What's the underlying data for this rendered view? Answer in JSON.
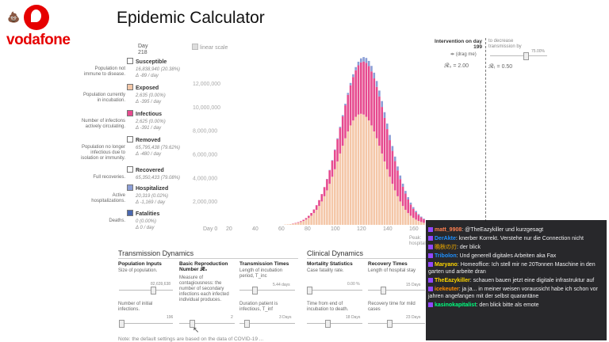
{
  "brand": {
    "name": "vodafone",
    "emoji": "💩"
  },
  "title": "Epidemic Calculator",
  "day": {
    "label": "Day",
    "value": "218"
  },
  "linear_scale": "linear scale",
  "intervention": {
    "label": "Intervention on day 199",
    "drag": "(drag me)",
    "r0": "𝓡₀ = 2.00",
    "rt_label": "to decrease transmission by",
    "rt_pct": "75.00%",
    "rt": "𝓡ₜ = 0.50"
  },
  "categories": [
    {
      "title": "Susceptible",
      "desc": "Population not immune to disease.",
      "v1": "16,838,940 (20.38%)",
      "v2": "Δ -89 / day",
      "color": "#ffffff"
    },
    {
      "title": "Exposed",
      "desc": "Population currently in incubation.",
      "v1": "2,635 (0.00%)",
      "v2": "Δ -395 / day",
      "color": "#f4c7a8"
    },
    {
      "title": "Infectious",
      "desc": "Number of infections actively circulating.",
      "v1": "2,625 (0.00%)",
      "v2": "Δ -391 / day",
      "color": "#e64b8f"
    },
    {
      "title": "Removed",
      "desc": "Population no longer infectious due to isolation or immunity.",
      "v1": "65,795,438 (79.62%)",
      "v2": "Δ -480 / day",
      "color": "#ffffff"
    },
    {
      "title": "Recovered",
      "desc": "Full recoveries.",
      "v1": "65,350,433 (79.08%)",
      "v2": "",
      "color": "#ffffff"
    },
    {
      "title": "Hospitalized",
      "desc": "Active hospitalizations.",
      "v1": "20,319 (0.02%)",
      "v2": "Δ -1,169 / day",
      "color": "#8b9ed6"
    },
    {
      "title": "Fatalities",
      "desc": "Deaths.",
      "v1": "0 (0.00%)",
      "v2": "Δ 0 / day",
      "color": "#4a68b0"
    }
  ],
  "chart_data": {
    "type": "bar",
    "title": "",
    "x": {
      "ticks": [
        0,
        20,
        40,
        60,
        80,
        100,
        120,
        140,
        160
      ],
      "label_prefix": "Day ",
      "range": [
        0,
        200
      ]
    },
    "y": {
      "ticks": [
        "2,000,000",
        "4,000,000",
        "6,000,000",
        "8,000,000",
        "10,000,000",
        "12,000,000"
      ],
      "range": [
        0,
        13000000
      ]
    },
    "peak_label": "Peak: hospital",
    "series": [
      {
        "name": "Exposed",
        "color": "#f4c7a8",
        "peak_day": 120,
        "peak_value": 9400000,
        "width": 17
      },
      {
        "name": "Infectious",
        "color": "#e64b8f",
        "peak_day": 126,
        "peak_value": 4600000,
        "width": 18
      },
      {
        "name": "Hospitalized",
        "color": "#8b9ed6",
        "peak_day": 134,
        "peak_value": 500000,
        "width": 16
      }
    ]
  },
  "transmission": {
    "title": "Transmission Dynamics",
    "pop": {
      "h": "Population Inputs",
      "d": "Size of population.",
      "val": "82,639,638",
      "d2": "Number of initial infections.",
      "val2": "196"
    },
    "r0": {
      "h": "Basic Reproduction Number 𝓡₀",
      "d": "Measure of contagiousness: the number of secondary infections each infected individual produces.",
      "val": "2"
    },
    "times": {
      "h": "Transmission Times",
      "d": "Length of incubation period, T_inc",
      "val": "5.44 days",
      "d2": "Duration patient is infectious, T_inf",
      "val2": "3 Days"
    }
  },
  "clinical": {
    "title": "Clinical Dynamics",
    "mort": {
      "h": "Mortality Statistics",
      "d": "Case fatality rate.",
      "val": "0.00 %",
      "d2": "Time from end of incubation to death.",
      "val2": "18 Days"
    },
    "rec": {
      "h": "Recovery Times",
      "d": "Length of hospital stay",
      "val": "15 Days",
      "d2": "Recovery time for mild cases",
      "val2": "23 Days"
    }
  },
  "footer": "Note: the default settings are based on the data of COVID-19 ...",
  "chat": [
    {
      "user": "matt_9908",
      "color": "#ff7f50",
      "text": "@TheEazykiller und kurzgesagt"
    },
    {
      "user": "DerAkte",
      "color": "#1e90ff",
      "text": "knerber Korrekt. Verstehe nur die Connection nicht"
    },
    {
      "user": "晩秋の刃",
      "color": "#b8860b",
      "text": "der blick"
    },
    {
      "user": "Tribolon",
      "color": "#1e90ff",
      "text": "Und generell digitales Arbeiten aka Fax"
    },
    {
      "user": "Maryano",
      "color": "#ffd700",
      "text": "Homeoffice: Ich stell mir ne 20Tonnen Maschine in den garten und arbeite dran"
    },
    {
      "user": "TheEazykiller",
      "color": "#ffd700",
      "text": "schauen bauen jetzt eine digitale infrastruktur auf"
    },
    {
      "user": "icekeuter",
      "color": "#ff8c00",
      "text": "ja ja... in meiner weisen voraussicht habe ich schon vor jahren angefangen mit der selbst quarantäne"
    },
    {
      "user": "kasinokapitalist",
      "color": "#00ff7f",
      "text": "den blick bitte als emote"
    }
  ]
}
